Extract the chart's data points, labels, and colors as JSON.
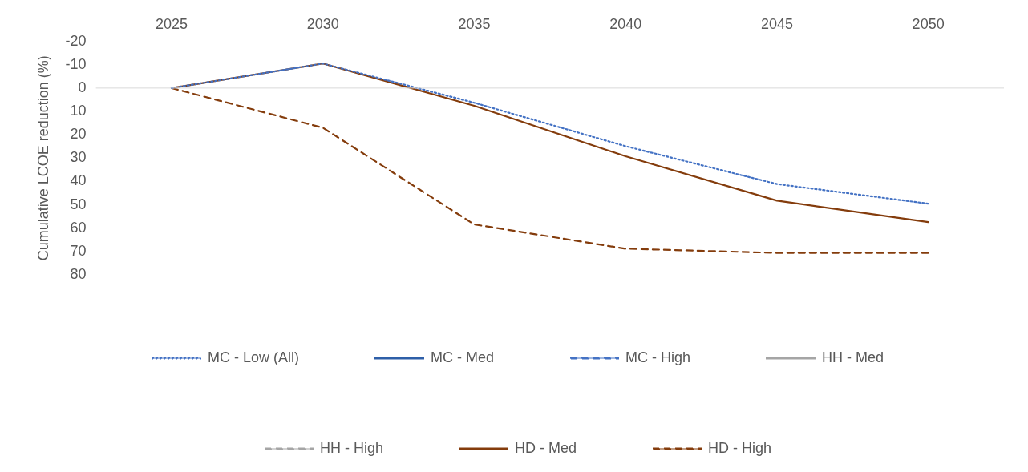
{
  "chart_data": {
    "type": "line",
    "ylabel": "Cumulative LCOE reduction (%)",
    "categories": [
      "2025",
      "2030",
      "2035",
      "2040",
      "2045",
      "2050"
    ],
    "ylim": [
      80,
      -20
    ],
    "yticks": [
      -20,
      -10,
      0,
      10,
      20,
      30,
      40,
      50,
      60,
      70,
      80
    ],
    "grid": false,
    "legend": "bottom",
    "marker": "none",
    "ref_lines": [
      {
        "axis": "y",
        "value": 0,
        "color": "#d9d9d9"
      }
    ],
    "series": [
      {
        "name": "MC - Low (All)",
        "color": "#4472c4",
        "line_style": "dotted",
        "values": [
          0,
          -10.5,
          6.3,
          24.9,
          41.1,
          49.5
        ]
      },
      {
        "name": "MC - Med",
        "color": "#2e5fa8",
        "line_style": "solid",
        "values": [
          null,
          null,
          null,
          null,
          null,
          null
        ]
      },
      {
        "name": "MC - High",
        "color": "#4472c4",
        "line_style": "dashed",
        "values": [
          null,
          null,
          null,
          null,
          null,
          null
        ]
      },
      {
        "name": "HH - Med",
        "color": "#a5a5a5",
        "line_style": "solid",
        "values": [
          null,
          null,
          null,
          null,
          null,
          null
        ]
      },
      {
        "name": "HH - High",
        "color": "#a5a5a5",
        "line_style": "dashed",
        "values": [
          null,
          null,
          null,
          null,
          null,
          null
        ]
      },
      {
        "name": "HD - Med",
        "color": "#843c0c",
        "line_style": "solid",
        "values": [
          0,
          -10.5,
          7.6,
          29.2,
          48.2,
          57.4
        ]
      },
      {
        "name": "HD - High",
        "color": "#843c0c",
        "line_style": "dashed",
        "values": [
          0,
          17,
          58.4,
          68.8,
          70.6,
          70.6
        ]
      }
    ]
  }
}
